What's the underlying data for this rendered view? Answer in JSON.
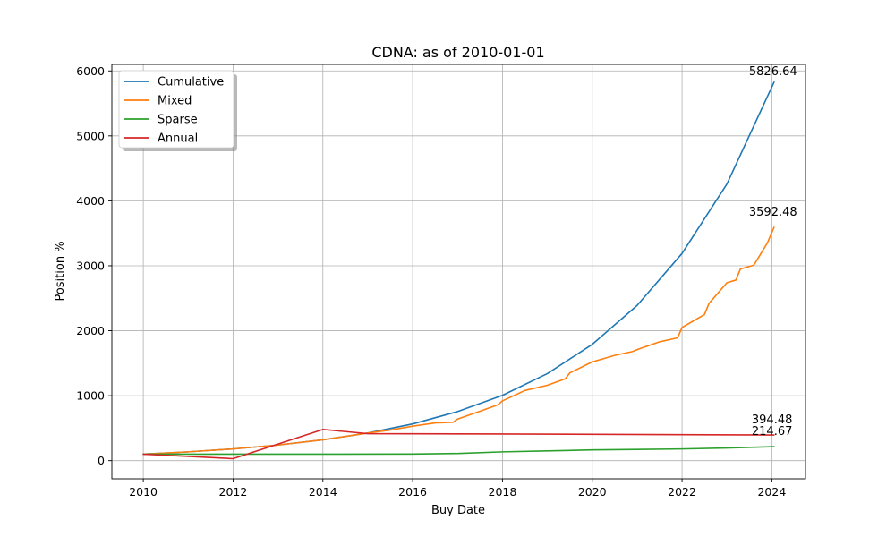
{
  "chart_data": {
    "type": "line",
    "title": "CDNA: as of 2010-01-01",
    "xlabel": "Buy Date",
    "ylabel": "Position %",
    "xlim": [
      2009.3,
      2024.75
    ],
    "ylim": [
      -280,
      6100
    ],
    "x_ticks": [
      "2010",
      "2012",
      "2014",
      "2016",
      "2018",
      "2020",
      "2022",
      "2024"
    ],
    "y_ticks": [
      "0",
      "1000",
      "2000",
      "3000",
      "4000",
      "5000",
      "6000"
    ],
    "grid": true,
    "legend_position": "top-left",
    "series": [
      {
        "name": "Cumulative",
        "color": "#1f77b4",
        "x": [
          2010,
          2011,
          2012,
          2013,
          2014,
          2015,
          2016,
          2017,
          2018,
          2019,
          2020,
          2021,
          2022,
          2023,
          2024.05
        ],
        "y": [
          100,
          135,
          180,
          240,
          320,
          425,
          565,
          755,
          1005,
          1340,
          1790,
          2390,
          3190,
          4260,
          5826.64
        ],
        "end_label": "5826.64"
      },
      {
        "name": "Mixed",
        "color": "#ff7f0e",
        "x": [
          2010,
          2011,
          2012,
          2013,
          2014,
          2015,
          2015.5,
          2016,
          2016.5,
          2016.9,
          2017.0,
          2017.5,
          2017.9,
          2018.0,
          2018.5,
          2019.0,
          2019.4,
          2019.5,
          2020.0,
          2020.5,
          2020.9,
          2021.0,
          2021.5,
          2021.9,
          2022.0,
          2022.5,
          2022.6,
          2023.0,
          2023.2,
          2023.3,
          2023.6,
          2023.9,
          2024.05
        ],
        "y": [
          100,
          135,
          180,
          240,
          320,
          425,
          470,
          530,
          580,
          590,
          640,
          760,
          860,
          920,
          1080,
          1160,
          1260,
          1350,
          1520,
          1620,
          1680,
          1710,
          1830,
          1890,
          2050,
          2250,
          2420,
          2740,
          2780,
          2950,
          3010,
          3350,
          3592.48
        ],
        "end_label": "3592.48"
      },
      {
        "name": "Sparse",
        "color": "#2ca02c",
        "x": [
          2010,
          2012,
          2014,
          2016,
          2017,
          2018,
          2019,
          2020,
          2021,
          2022,
          2023,
          2024.05
        ],
        "y": [
          100,
          100,
          100,
          102,
          110,
          135,
          150,
          165,
          172,
          180,
          195,
          214.67
        ],
        "end_label": "214.67"
      },
      {
        "name": "Annual",
        "color": "#d62728",
        "x": [
          2010,
          2012,
          2014,
          2015,
          2018,
          2022,
          2024.05
        ],
        "y": [
          100,
          30,
          480,
          415,
          410,
          400,
          394.48
        ],
        "end_label": "394.48"
      }
    ]
  }
}
